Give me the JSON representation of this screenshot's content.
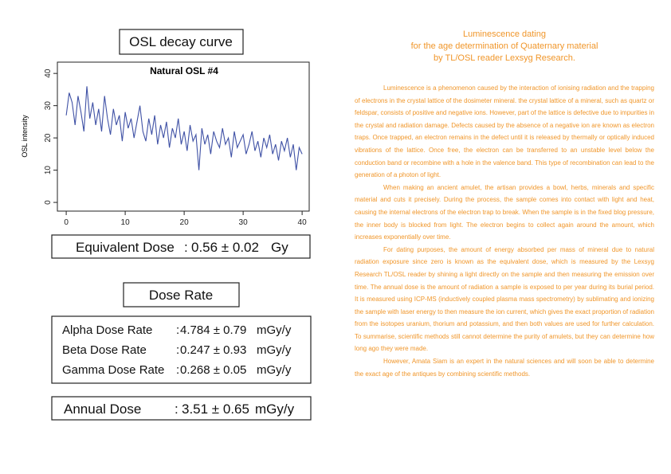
{
  "panel_title": "OSL decay curve",
  "chart_data": {
    "type": "line",
    "title": "Natural OSL #4",
    "y_label": "OSL intensity",
    "color": "#3f51a5",
    "x": [
      0,
      0.5,
      1,
      1.5,
      2,
      2.5,
      3,
      3.5,
      4,
      4.5,
      5,
      5.5,
      6,
      6.5,
      7,
      7.5,
      8,
      8.5,
      9,
      9.5,
      10,
      10.5,
      11,
      11.5,
      12,
      12.5,
      13,
      13.5,
      14,
      14.5,
      15,
      15.5,
      16,
      16.5,
      17,
      17.5,
      18,
      18.5,
      19,
      19.5,
      20,
      20.5,
      21,
      21.5,
      22,
      22.5,
      23,
      23.5,
      24,
      24.5,
      25,
      25.5,
      26,
      26.5,
      27,
      27.5,
      28,
      28.5,
      29,
      29.5,
      30,
      30.5,
      31,
      31.5,
      32,
      32.5,
      33,
      33.5,
      34,
      34.5,
      35,
      35.5,
      36,
      36.5,
      37,
      37.5,
      38,
      38.5,
      39,
      39.5,
      40
    ],
    "values": [
      27,
      34,
      31,
      24,
      33,
      28,
      22,
      36,
      26,
      31,
      24,
      29,
      22,
      33,
      26,
      21,
      29,
      24,
      27,
      19,
      28,
      23,
      26,
      20,
      25,
      30,
      22,
      19,
      26,
      21,
      27,
      18,
      24,
      20,
      25,
      17,
      23,
      20,
      26,
      18,
      22,
      16,
      24,
      19,
      21,
      10,
      23,
      18,
      21,
      15,
      22,
      19,
      17,
      23,
      18,
      20,
      14,
      22,
      17,
      19,
      21,
      15,
      18,
      22,
      16,
      19,
      14,
      20,
      17,
      21,
      15,
      18,
      13,
      19,
      16,
      20,
      14,
      18,
      10,
      17,
      15
    ],
    "xlim": [
      -1.5,
      41.2
    ],
    "ylim": [
      -2.7,
      43.5
    ],
    "xticks": [
      0,
      10,
      20,
      30,
      40
    ],
    "yticks": [
      0,
      10,
      20,
      30,
      40
    ]
  },
  "equivalent_dose": {
    "label": "Equivalent Dose",
    "separator": ":",
    "value": "0.56 ± 0.02",
    "unit": "Gy"
  },
  "dose_rate": {
    "title": "Dose Rate",
    "rows": [
      {
        "label": "Alpha Dose Rate",
        "separator": ":",
        "value": "4.784 ± 0.79",
        "unit": "mGy/y"
      },
      {
        "label": "Beta Dose Rate",
        "separator": ":",
        "value": "0.247 ± 0.93",
        "unit": "mGy/y"
      },
      {
        "label": "Gamma Dose Rate",
        "separator": ":",
        "value": "0.268 ± 0.05",
        "unit": "mGy/y"
      }
    ]
  },
  "annual_dose": {
    "label": "Annual Dose",
    "separator": ":",
    "value": "3.51 ± 0.65",
    "unit": "mGy/y"
  },
  "article": {
    "heading": [
      "Luminescence dating",
      "for the age determination of Quaternary material",
      "by TL/OSL reader Lexsyg Research."
    ],
    "paragraphs": [
      "Luminescence is a phenomenon caused by the interaction of ionising radiation and the trapping of electrons in the crystal lattice of the dosimeter mineral. the crystal lattice of a mineral, such as quartz or feldspar, consists of positive and negative ions. However, part of the lattice is defective due to impurities in the crystal and radiation damage. Defects caused by the absence of a negative ion are known as electron traps. Once trapped, an electron remains in the defect until it is released by thermally or optically induced vibrations of the lattice. Once free, the electron can be transferred to an unstable level below the conduction band or recombine with a hole in the valence band. This type of recombination can lead to the generation of a photon of light.",
      "When making an ancient amulet, the artisan provides a bowl, herbs, minerals and specific material and cuts it precisely. During the process, the sample comes into contact with light and heat, causing the internal electrons of the electron trap to break. When the sample is in the fixed blog pressure, the inner body is blocked from light. The electron begins to collect again around the amount, which increases exponentially over time.",
      "For dating purposes, the amount of energy absorbed per mass of mineral due to natural radiation exposure since zero is known as the equivalent dose, which is measured by the Lexsyg Research TL/OSL reader by shining a light directly on the sample and then measuring the emission over time. The annual dose is the amount of radiation a sample is exposed to per year during its burial period. It is measured using ICP-MS (inductively coupled plasma mass spectrometry) by sublimating and ionizing the sample with laser energy to then measure the ion current, which gives the exact proportion of radiation from the isotopes uranium, thorium and potassium, and then both values are used for further calculation. To summarise, scientific methods still cannot determine the purity of amulets, but they can determine how long ago they were made.",
      "However, Amata Siam is an expert in the natural sciences and will soon be able to determine the exact age of the antiques by combining scientific methods."
    ]
  }
}
